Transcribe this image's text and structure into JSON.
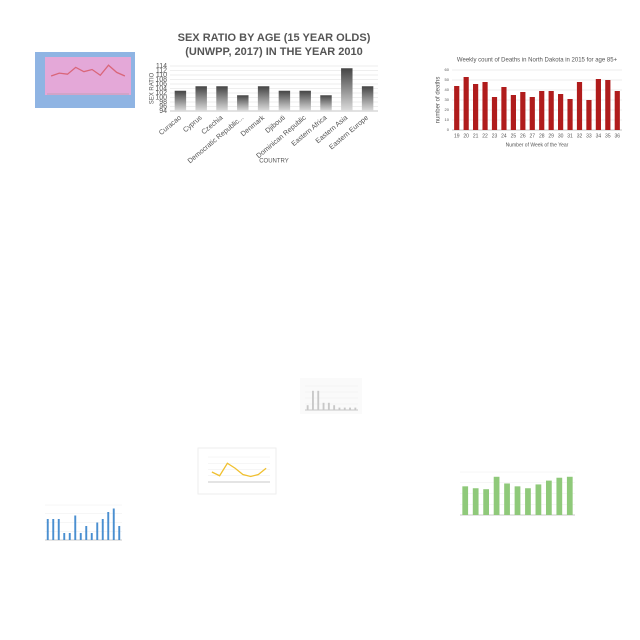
{
  "chart_data": [
    {
      "type": "line",
      "values": [
        5,
        5.8,
        5.5,
        7.4,
        6.2,
        6.8,
        5.2,
        8,
        6,
        5
      ],
      "color": "#d9667a",
      "ylim": [
        0,
        10
      ]
    },
    {
      "type": "bar",
      "title": [
        "SEX RATIO BY AGE (15 YEAR OLDS)",
        "(UNWPP, 2017) IN THE YEAR 2010"
      ],
      "x_label": "COUNTRY",
      "y_label": "SEX RATIO",
      "categories": [
        "Curacao",
        "Cyprus",
        "Czechia",
        "Democratic Republic...",
        "Denmark",
        "Djibouti",
        "Dominican Republic",
        "Eastern Africa",
        "Eastern Asia",
        "Eastern Europe"
      ],
      "values": [
        103,
        105,
        105,
        101,
        105,
        103,
        103,
        101,
        113,
        105
      ],
      "color": "#707070",
      "ylim": [
        94,
        114
      ],
      "yticks": [
        94,
        96,
        98,
        100,
        102,
        104,
        106,
        108,
        110,
        112,
        114
      ],
      "grid": true
    },
    {
      "type": "bar",
      "title": "Weekly count of Deaths in North Dakota in 2015 for age 85+",
      "x_label": "Number of Week of the Year",
      "y_label": "number of deaths",
      "categories": [
        "19",
        "20",
        "21",
        "22",
        "23",
        "24",
        "25",
        "26",
        "27",
        "28",
        "29",
        "30",
        "31",
        "32",
        "33",
        "34",
        "35",
        "36"
      ],
      "values": [
        44,
        53,
        46,
        48,
        33,
        43,
        35,
        38,
        33,
        39,
        39,
        36,
        31,
        48,
        30,
        51,
        50,
        39
      ],
      "color": "#b01c1c",
      "ylim": [
        0,
        60
      ],
      "yticks": [
        0,
        10,
        20,
        30,
        40,
        50,
        60
      ],
      "grid": true
    },
    {
      "type": "bar",
      "values": [
        2,
        8,
        8,
        3,
        3,
        2,
        1,
        1,
        1,
        1
      ],
      "color": "#c8c8c8",
      "ylim": [
        0,
        10
      ],
      "grid": true
    },
    {
      "type": "line",
      "values": [
        40,
        25,
        75,
        55,
        30,
        22,
        30,
        55
      ],
      "color": "#f0c030",
      "ylim": [
        0,
        100
      ],
      "grid": true
    },
    {
      "type": "bar",
      "values": [
        60,
        60,
        60,
        20,
        20,
        70,
        20,
        40,
        20,
        50,
        60,
        80,
        90,
        40
      ],
      "color": "#4a8fd0",
      "ylim": [
        0,
        100
      ],
      "grid": true
    },
    {
      "type": "bar",
      "values": [
        300000,
        280000,
        270000,
        400000,
        330000,
        300000,
        280000,
        320000,
        360000,
        390000,
        400000
      ],
      "color": "#8fc97a",
      "ylim": [
        0,
        450000
      ],
      "grid": true
    }
  ]
}
